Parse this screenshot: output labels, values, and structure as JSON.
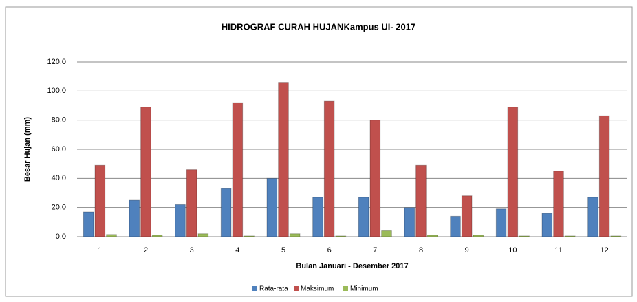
{
  "chart_data": {
    "type": "bar",
    "title": "HIDROGRAF CURAH HUJANKampus UI- 2017",
    "x_label": "Bulan Januari - Desember 2017",
    "y_label": "Besar Hujan (mm)",
    "categories": [
      "1",
      "2",
      "3",
      "4",
      "5",
      "6",
      "7",
      "8",
      "9",
      "10",
      "11",
      "12"
    ],
    "series": [
      {
        "name": "Rata-rata",
        "color": "#4f81bd",
        "values": [
          17,
          25,
          22,
          33,
          40,
          27,
          27,
          20,
          14,
          19,
          16,
          27
        ]
      },
      {
        "name": "Maksimum",
        "color": "#c0504d",
        "values": [
          49,
          89,
          46,
          92,
          106,
          93,
          80,
          49,
          28,
          89,
          45,
          83
        ]
      },
      {
        "name": "Minimum",
        "color": "#9bbb59",
        "values": [
          1.5,
          1,
          2,
          0.5,
          2,
          0.5,
          4,
          1,
          1,
          0.5,
          0.5,
          0.5
        ]
      }
    ],
    "ylim": [
      0,
      120
    ],
    "yticks": [
      {
        "value": 0,
        "label": "0.0"
      },
      {
        "value": 20,
        "label": "20.0"
      },
      {
        "value": 40,
        "label": "40.0"
      },
      {
        "value": 60,
        "label": "60.0"
      },
      {
        "value": 80,
        "label": "80.0"
      },
      {
        "value": 100,
        "label": "100.0"
      },
      {
        "value": 120,
        "label": "120.0"
      }
    ],
    "grid": true,
    "legend": "bottom"
  }
}
